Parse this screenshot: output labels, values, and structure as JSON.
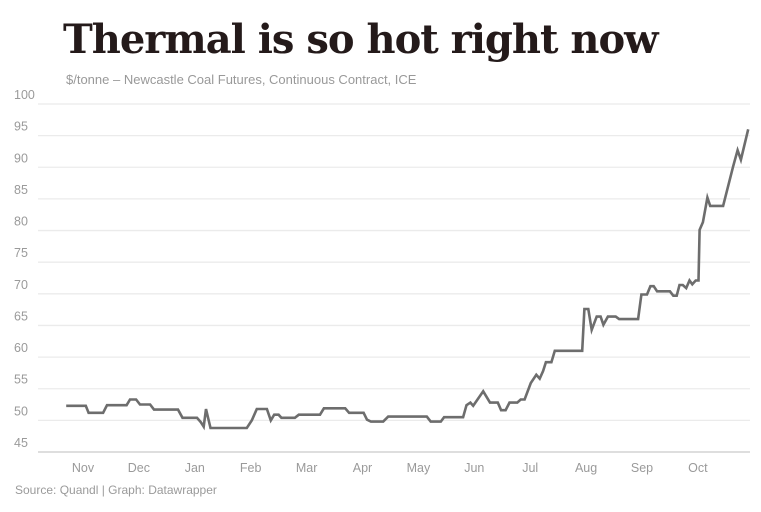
{
  "header": {
    "title": "Thermal is so hot right now",
    "subtitle": "$/tonne – Newcastle Coal Futures, Continuous Contract, ICE"
  },
  "footer": {
    "source": "Source: Quandl | Graph: Datawrapper"
  },
  "colors": {
    "title": "#241a1a",
    "subtitle": "#999999",
    "tick_label": "#9a9a9a",
    "grid": "#ebebeb",
    "axis_line": "#c9c9c9",
    "line": "#6d6d6d",
    "source_text": "#9a9a9a"
  },
  "chart_data": {
    "type": "line",
    "title": "Thermal is so hot right now",
    "units": "$/tonne",
    "instrument": "Newcastle Coal Futures, Continuous Contract, ICE",
    "legend": "none",
    "grid": "horizontal",
    "ylim": [
      45,
      100
    ],
    "y_ticks": [
      100,
      95,
      90,
      85,
      80,
      75,
      70,
      65,
      60,
      55,
      50,
      45
    ],
    "x_tick_labels": [
      "Nov",
      "Dec",
      "Jan",
      "Feb",
      "Mar",
      "Apr",
      "May",
      "Jun",
      "Jul",
      "Aug",
      "Sep",
      "Oct"
    ],
    "x_unit": "months (0 = Nov tick, 11 = Oct tick)",
    "x_domain": [
      -0.75,
      11.95
    ],
    "series": [
      {
        "name": "Newcastle coal futures price ($/tonne)",
        "points": [
          [
            -0.3,
            52.3
          ],
          [
            0.05,
            52.3
          ],
          [
            0.1,
            51.2
          ],
          [
            0.36,
            51.2
          ],
          [
            0.43,
            52.4
          ],
          [
            0.78,
            52.4
          ],
          [
            0.84,
            53.3
          ],
          [
            0.95,
            53.3
          ],
          [
            1.02,
            52.5
          ],
          [
            1.2,
            52.5
          ],
          [
            1.27,
            51.7
          ],
          [
            1.7,
            51.7
          ],
          [
            1.78,
            50.4
          ],
          [
            2.04,
            50.4
          ],
          [
            2.11,
            49.7
          ],
          [
            2.16,
            49.0
          ],
          [
            2.2,
            51.8
          ],
          [
            2.28,
            48.8
          ],
          [
            2.93,
            48.8
          ],
          [
            3.02,
            50.0
          ],
          [
            3.11,
            51.8
          ],
          [
            3.29,
            51.8
          ],
          [
            3.36,
            50.0
          ],
          [
            3.42,
            50.9
          ],
          [
            3.5,
            50.9
          ],
          [
            3.55,
            50.4
          ],
          [
            3.79,
            50.4
          ],
          [
            3.86,
            50.9
          ],
          [
            4.24,
            50.9
          ],
          [
            4.31,
            51.9
          ],
          [
            4.69,
            51.9
          ],
          [
            4.76,
            51.2
          ],
          [
            5.02,
            51.2
          ],
          [
            5.08,
            50.1
          ],
          [
            5.15,
            49.8
          ],
          [
            5.37,
            49.8
          ],
          [
            5.46,
            50.6
          ],
          [
            6.15,
            50.6
          ],
          [
            6.22,
            49.8
          ],
          [
            6.4,
            49.8
          ],
          [
            6.46,
            50.5
          ],
          [
            6.8,
            50.5
          ],
          [
            6.86,
            52.4
          ],
          [
            6.93,
            52.8
          ],
          [
            6.98,
            52.3
          ],
          [
            7.16,
            54.6
          ],
          [
            7.28,
            52.8
          ],
          [
            7.42,
            52.8
          ],
          [
            7.48,
            51.6
          ],
          [
            7.56,
            51.6
          ],
          [
            7.63,
            52.8
          ],
          [
            7.77,
            52.8
          ],
          [
            7.83,
            53.3
          ],
          [
            7.9,
            53.3
          ],
          [
            8.01,
            55.9
          ],
          [
            8.11,
            57.2
          ],
          [
            8.17,
            56.6
          ],
          [
            8.23,
            57.8
          ],
          [
            8.28,
            59.2
          ],
          [
            8.38,
            59.2
          ],
          [
            8.44,
            61.0
          ],
          [
            8.93,
            61.0
          ],
          [
            8.97,
            67.6
          ],
          [
            9.04,
            67.6
          ],
          [
            9.1,
            64.3
          ],
          [
            9.19,
            66.4
          ],
          [
            9.26,
            66.4
          ],
          [
            9.31,
            65.1
          ],
          [
            9.39,
            66.4
          ],
          [
            9.53,
            66.4
          ],
          [
            9.59,
            66.0
          ],
          [
            9.93,
            66.0
          ],
          [
            9.99,
            69.9
          ],
          [
            10.09,
            69.9
          ],
          [
            10.15,
            71.2
          ],
          [
            10.21,
            71.2
          ],
          [
            10.27,
            70.4
          ],
          [
            10.5,
            70.4
          ],
          [
            10.56,
            69.7
          ],
          [
            10.62,
            69.7
          ],
          [
            10.67,
            71.4
          ],
          [
            10.73,
            71.4
          ],
          [
            10.79,
            70.9
          ],
          [
            10.85,
            72.1
          ],
          [
            10.9,
            71.5
          ],
          [
            10.96,
            72.1
          ],
          [
            11.01,
            72.1
          ],
          [
            11.03,
            80.1
          ],
          [
            11.09,
            81.3
          ],
          [
            11.17,
            85.2
          ],
          [
            11.22,
            83.9
          ],
          [
            11.45,
            83.9
          ],
          [
            11.63,
            90.1
          ],
          [
            11.71,
            92.7
          ],
          [
            11.77,
            91.2
          ],
          [
            11.9,
            96.0
          ]
        ]
      }
    ]
  }
}
